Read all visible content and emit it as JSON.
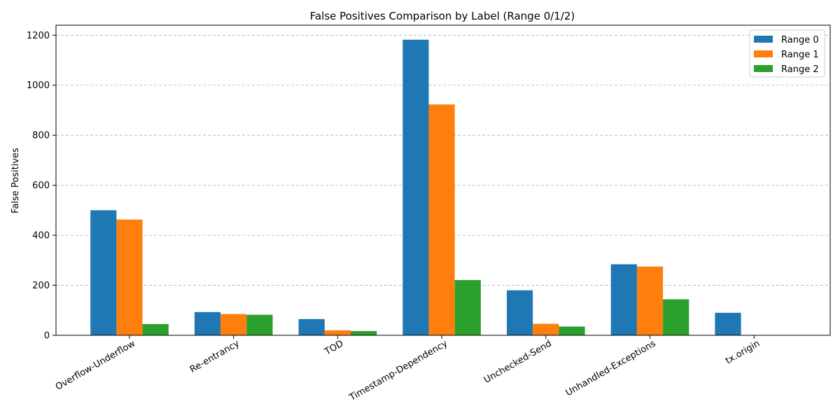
{
  "chart_data": {
    "type": "bar",
    "title": "False Positives Comparison by Label (Range 0/1/2)",
    "xlabel": "",
    "ylabel": "False Positives",
    "categories": [
      "Overflow-Underflow",
      "Re-entrancy",
      "TOD",
      "Timestamp-Dependency",
      "Unchecked-Send",
      "Unhandled-Exceptions",
      "tx.origin"
    ],
    "series": [
      {
        "name": "Range 0",
        "color": "#1f77b4",
        "values": [
          500,
          93,
          65,
          1182,
          180,
          284,
          90
        ]
      },
      {
        "name": "Range 1",
        "color": "#ff7f0e",
        "values": [
          463,
          85,
          20,
          923,
          46,
          275,
          0
        ]
      },
      {
        "name": "Range 2",
        "color": "#2ca02c",
        "values": [
          45,
          82,
          17,
          221,
          35,
          144,
          0
        ]
      }
    ],
    "ylim": [
      0,
      1240
    ],
    "yticks": [
      0,
      200,
      400,
      600,
      800,
      1000,
      1200
    ],
    "grid": "y-dashed",
    "legend_position": "top-right"
  }
}
